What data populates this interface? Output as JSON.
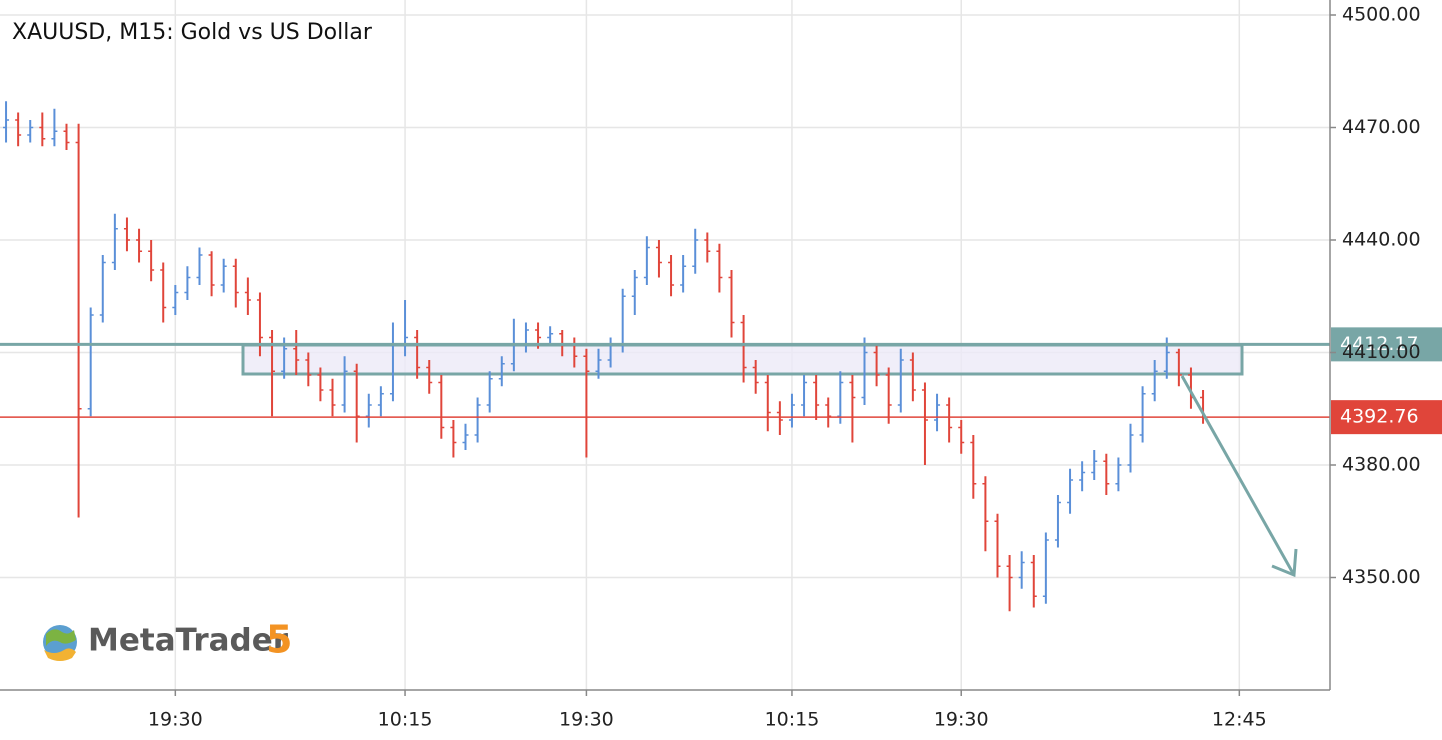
{
  "chart_data": {
    "type": "ohlc",
    "title": "XAUUSD, M15: Gold vs US Dollar",
    "watermark": "MetaTrader",
    "watermark_version": "5",
    "up_color": "#5a8fd8",
    "down_color": "#e0453a",
    "grid": true,
    "ylim": [
      4320,
      4504
    ],
    "yticks": [
      {
        "value": 4350,
        "label": "4350.00"
      },
      {
        "value": 4380,
        "label": "4380.00"
      },
      {
        "value": 4410,
        "label": "4410.00"
      },
      {
        "value": 4440,
        "label": "4440.00"
      },
      {
        "value": 4470,
        "label": "4470.00"
      },
      {
        "value": 4500,
        "label": "4500.00"
      }
    ],
    "levels": [
      {
        "value": 4412.17,
        "color": "#78a6a6"
      },
      {
        "value": 4392.76,
        "color": "#e0453a"
      }
    ],
    "categories": [
      null,
      null,
      null,
      null,
      null,
      null,
      null,
      null,
      null,
      null,
      null,
      null,
      null,
      null,
      "19:30",
      null,
      null,
      null,
      null,
      null,
      null,
      null,
      null,
      null,
      null,
      null,
      null,
      null,
      null,
      null,
      null,
      null,
      null,
      "10:15",
      null,
      null,
      null,
      null,
      null,
      null,
      null,
      null,
      null,
      null,
      null,
      null,
      null,
      null,
      "19:30",
      null,
      null,
      null,
      null,
      null,
      null,
      null,
      null,
      null,
      null,
      null,
      null,
      null,
      null,
      null,
      null,
      "10:15",
      null,
      null,
      null,
      null,
      null,
      null,
      null,
      null,
      null,
      null,
      null,
      null,
      null,
      "19:30",
      null,
      null,
      null,
      null,
      null,
      null,
      null,
      null,
      null,
      null,
      null,
      null,
      null,
      null,
      null,
      null,
      null,
      null,
      null,
      null,
      null,
      null,
      "12:45",
      null,
      null,
      null,
      null,
      null,
      null,
      null
    ],
    "open": [
      4470,
      4472,
      4468,
      4470,
      4467,
      4469,
      4466,
      4395,
      4420,
      4434,
      4443,
      4440,
      4437,
      4432,
      4422,
      4426,
      4430,
      4436,
      4428,
      4433,
      4426,
      4424,
      4414,
      4405,
      4411,
      4408,
      4404,
      4400,
      4396,
      4405,
      4393,
      4396,
      4399,
      4412,
      4414,
      4406,
      4402,
      4390,
      4386,
      4388,
      4396,
      4403,
      4407,
      4412,
      4416,
      4414,
      4415,
      4412,
      4409,
      4405,
      4408,
      4412,
      4425,
      4430,
      4438,
      4434,
      4428,
      4433,
      4440,
      4437,
      4430,
      4418,
      4406,
      4402,
      4394,
      4392,
      4396,
      4402,
      4396,
      4393,
      4402,
      4398,
      4410,
      4404,
      4396,
      4408,
      4400,
      4392,
      4396,
      4390,
      4386,
      4375,
      4365,
      4353,
      4350,
      4354,
      4345,
      4360,
      4370,
      4376,
      4378,
      4381,
      4375,
      4380,
      4388,
      4399,
      4405,
      4410,
      4404,
      4398,
      null,
      null,
      null,
      null,
      null,
      null,
      null,
      null,
      null,
      null
    ],
    "high": [
      4477,
      4474,
      4472,
      4474,
      4475,
      4471,
      4471,
      4422,
      4436,
      4447,
      4446,
      4443,
      4440,
      4434,
      4428,
      4433,
      4438,
      4437,
      4435,
      4435,
      4430,
      4426,
      4416,
      4414,
      4416,
      4410,
      4406,
      4403,
      4409,
      4407,
      4399,
      4401,
      4418,
      4424,
      4416,
      4408,
      4404,
      4392,
      4391,
      4398,
      4405,
      4409,
      4419,
      4418,
      4418,
      4417,
      4416,
      4414,
      4411,
      4411,
      4414,
      4427,
      4432,
      4441,
      4440,
      4436,
      4436,
      4443,
      4442,
      4439,
      4432,
      4420,
      4408,
      4404,
      4397,
      4399,
      4404,
      4404,
      4398,
      4405,
      4404,
      4414,
      4412,
      4406,
      4411,
      4410,
      4402,
      4399,
      4398,
      4392,
      4388,
      4377,
      4367,
      4356,
      4357,
      4356,
      4362,
      4372,
      4379,
      4381,
      4384,
      4383,
      4382,
      4391,
      4401,
      4408,
      4414,
      4411,
      4406,
      4400,
      null,
      null,
      null,
      null,
      null,
      null,
      null,
      null,
      null,
      null
    ],
    "low": [
      4466,
      4465,
      4466,
      4465,
      4465,
      4464,
      4366,
      4393,
      4418,
      4432,
      4437,
      4434,
      4429,
      4418,
      4420,
      4424,
      4428,
      4425,
      4426,
      4422,
      4420,
      4409,
      4393,
      4403,
      4404,
      4401,
      4397,
      4393,
      4394,
      4386,
      4390,
      4393,
      4397,
      4409,
      4403,
      4399,
      4387,
      4382,
      4384,
      4386,
      4394,
      4401,
      4405,
      4410,
      4411,
      4412,
      4409,
      4406,
      4382,
      4403,
      4406,
      4410,
      4420,
      4428,
      4430,
      4425,
      4426,
      4431,
      4434,
      4426,
      4414,
      4402,
      4399,
      4389,
      4388,
      4390,
      4393,
      4392,
      4390,
      4391,
      4386,
      4396,
      4401,
      4391,
      4394,
      4397,
      4380,
      4389,
      4386,
      4383,
      4371,
      4357,
      4350,
      4341,
      4347,
      4342,
      4343,
      4358,
      4367,
      4373,
      4376,
      4372,
      4373,
      4378,
      4386,
      4397,
      4403,
      4401,
      4395,
      4391,
      null,
      null,
      null,
      null,
      null,
      null,
      null,
      null,
      null,
      null
    ],
    "close": [
      4472,
      4468,
      4470,
      4467,
      4469,
      4466,
      4395,
      4420,
      4434,
      4443,
      4440,
      4437,
      4432,
      4422,
      4426,
      4430,
      4436,
      4428,
      4433,
      4426,
      4424,
      4414,
      4405,
      4411,
      4408,
      4404,
      4400,
      4396,
      4405,
      4393,
      4396,
      4399,
      4412,
      4414,
      4406,
      4402,
      4390,
      4386,
      4388,
      4396,
      4403,
      4407,
      4412,
      4416,
      4414,
      4415,
      4412,
      4409,
      4405,
      4408,
      4412,
      4425,
      4430,
      4438,
      4434,
      4428,
      4433,
      4440,
      4437,
      4430,
      4418,
      4406,
      4402,
      4394,
      4392,
      4396,
      4402,
      4396,
      4393,
      4402,
      4398,
      4410,
      4404,
      4396,
      4408,
      4400,
      4392,
      4396,
      4390,
      4386,
      4375,
      4365,
      4353,
      4350,
      4354,
      4345,
      4360,
      4370,
      4376,
      4378,
      4381,
      4375,
      4380,
      4388,
      4399,
      4405,
      4410,
      4404,
      4398,
      4392.76,
      null,
      null,
      null,
      null,
      null,
      null,
      null,
      null,
      null,
      null
    ]
  }
}
